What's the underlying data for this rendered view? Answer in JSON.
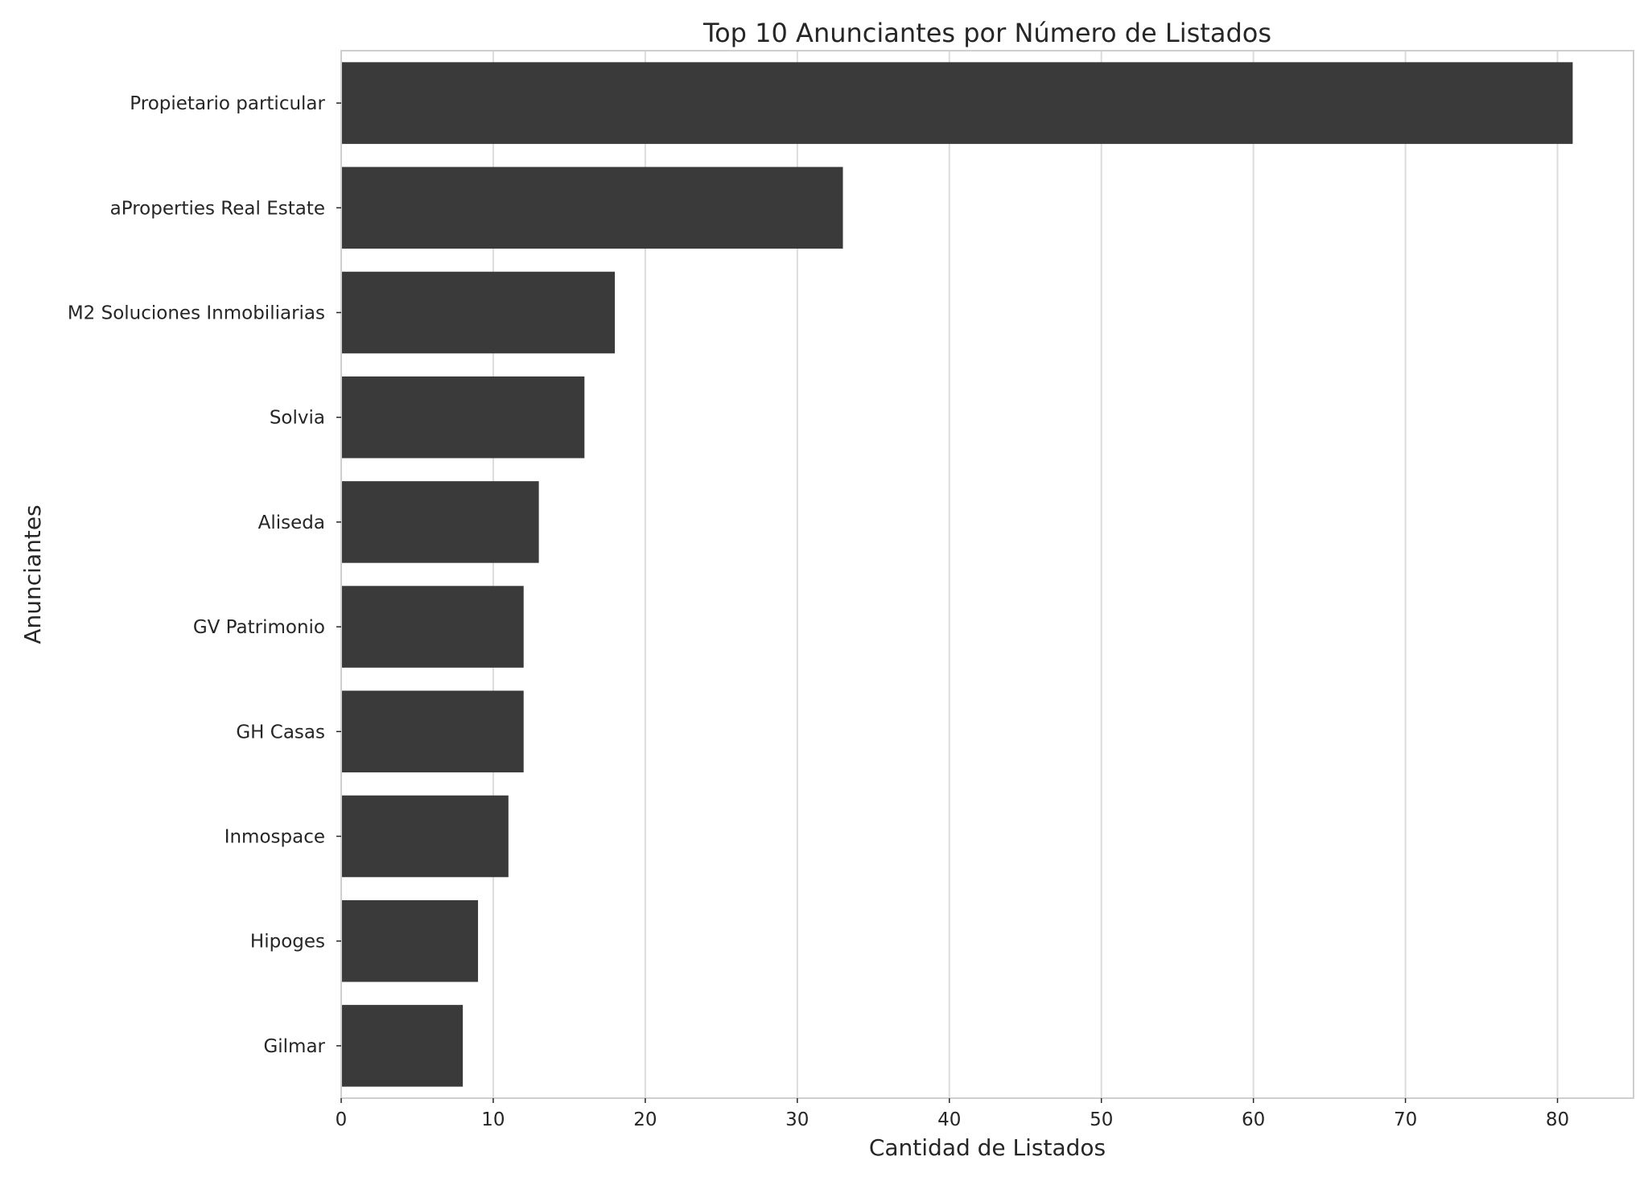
{
  "chart_data": {
    "type": "bar",
    "orientation": "horizontal",
    "title": "Top 10 Anunciantes por Número de Listados",
    "xlabel": "Cantidad de Listados",
    "ylabel": "Anunciantes",
    "categories": [
      "Propietario particular",
      "aProperties Real Estate",
      "M2 Soluciones Inmobiliarias",
      "Solvia",
      "Aliseda",
      "GV Patrimonio",
      "GH Casas",
      "Inmospace",
      "Hipoges",
      "Gilmar"
    ],
    "values": [
      81,
      33,
      18,
      16,
      13,
      12,
      12,
      11,
      9,
      8
    ],
    "xlim": [
      0,
      85
    ],
    "xticks": [
      "0",
      "10",
      "20",
      "30",
      "40",
      "50",
      "60",
      "70",
      "80"
    ],
    "grid": "vertical",
    "legend": "none",
    "colors": {
      "bar": "#3a3a3a",
      "grid": "#dcdcdc",
      "frame": "#cfcfcf",
      "text": "#262626"
    }
  }
}
